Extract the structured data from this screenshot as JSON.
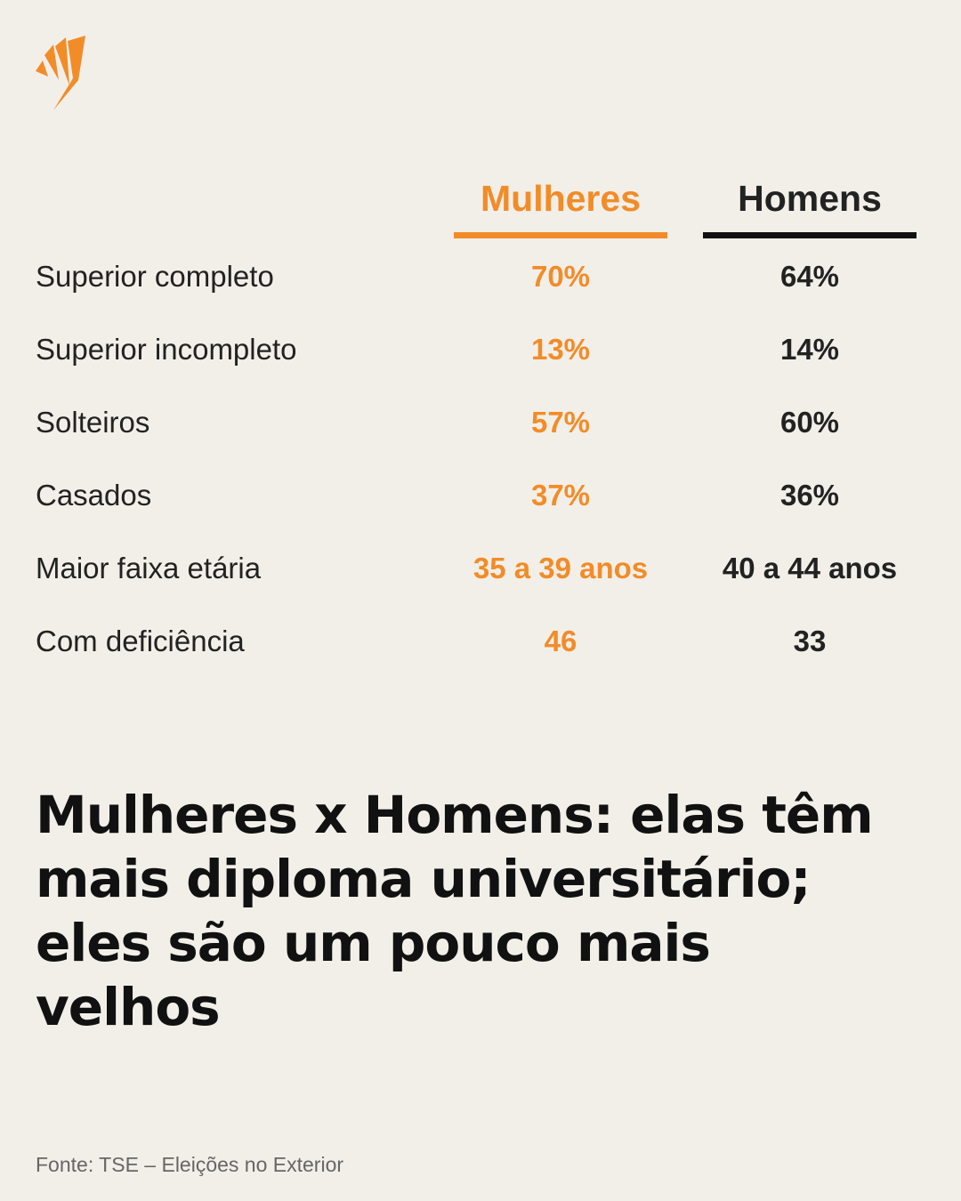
{
  "table": {
    "columns": [
      "Mulheres",
      "Homens"
    ],
    "rows": [
      [
        "Superior completo",
        "70%",
        "64%"
      ],
      [
        "Superior incompleto",
        "13%",
        "14%"
      ],
      [
        "Solteiros",
        "57%",
        "60%"
      ],
      [
        "Casados",
        "37%",
        "36%"
      ],
      [
        "Maior faixa etária",
        "35 a 39 anos",
        "40 a 44 anos"
      ],
      [
        "Com deficiência",
        "46",
        "33"
      ]
    ]
  },
  "headline": "Mulheres x Homens: elas têm mais diploma universitário; eles são um pouco mais velhos",
  "source": "Fonte: TSE – Eleições no Exterior"
}
